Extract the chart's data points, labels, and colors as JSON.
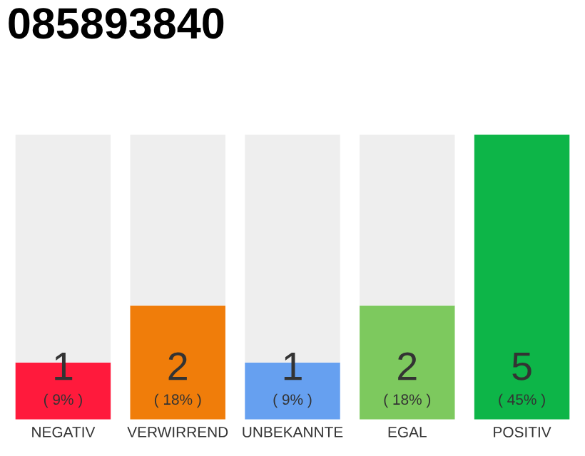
{
  "chart_data": {
    "type": "bar",
    "title": "085893840",
    "stacked": true,
    "categories": [
      "NEGATIV",
      "VERWIRREND",
      "UNBEKANNTE",
      "EGAL",
      "POSITIV"
    ],
    "series": [
      {
        "colors": [
          "#ff1a3c",
          "#f07d0a",
          "#66a0f0",
          "#7dc95e",
          "#0db548"
        ],
        "values": [
          1,
          2,
          1,
          2,
          5
        ],
        "value_labels": [
          "1\n( 9% )",
          "2\n( 18% )",
          "1\n( 9% )",
          "2\n( 18% )",
          "5\n( 45% )"
        ]
      },
      {
        "color": "#eeeeee",
        "values": [
          4,
          3,
          4,
          3,
          0
        ]
      }
    ],
    "ylim": [
      0,
      5
    ],
    "tick_labels": "x",
    "grid": false,
    "legend": false
  }
}
